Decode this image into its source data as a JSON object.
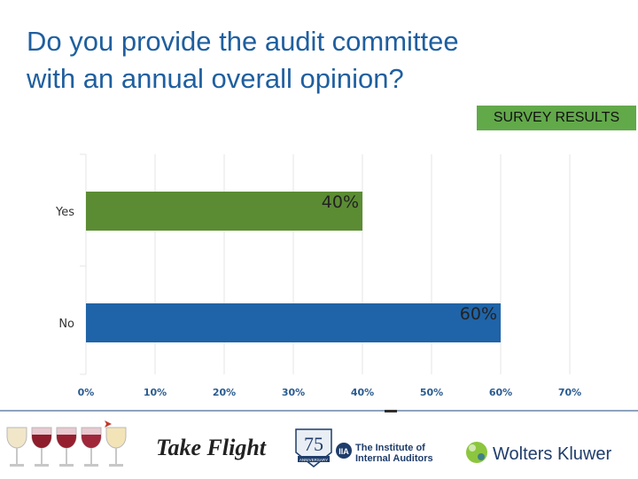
{
  "title_lines": [
    "Do you provide the audit committee",
    "with an annual overall opinion?"
  ],
  "badge": "SURVEY RESULTS",
  "chart_data": {
    "type": "bar",
    "orientation": "horizontal",
    "categories": [
      "Yes",
      "No"
    ],
    "values": [
      40,
      60
    ],
    "data_labels": [
      "40%",
      "60%"
    ],
    "bar_colors": [
      "#5b8c33",
      "#1f64a8"
    ],
    "xlim": [
      0,
      70
    ],
    "xticks": [
      "0%",
      "10%",
      "20%",
      "30%",
      "40%",
      "50%",
      "60%",
      "70%"
    ],
    "grid": "vertical"
  },
  "footer": {
    "take_flight": "Take Flight",
    "badge_number": "75",
    "anniversary": "ANNIVERSARY",
    "iia_abbrev": "IIA",
    "iia_line1": "The Institute of",
    "iia_line2": "Internal Auditors",
    "wolters_kluwer": "Wolters Kluwer"
  }
}
